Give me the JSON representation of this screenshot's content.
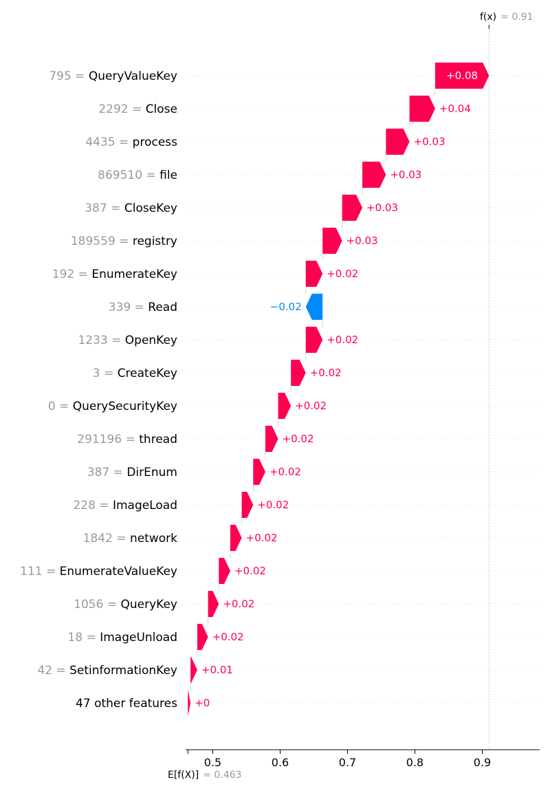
{
  "chart_data": {
    "type": "waterfall",
    "base_value": {
      "label": "E[f(X)]",
      "value": 0.463,
      "text": "= 0.463"
    },
    "output_value": {
      "label": "f(x)",
      "value": 0.91,
      "text": "= 0.91"
    },
    "xticks": [
      {
        "value": 0.5,
        "label": "0.5"
      },
      {
        "value": 0.6,
        "label": "0.6"
      },
      {
        "value": 0.7,
        "label": "0.7"
      },
      {
        "value": 0.8,
        "label": "0.8"
      },
      {
        "value": 0.9,
        "label": "0.9"
      }
    ],
    "xlim": [
      0.463,
      0.98
    ],
    "positive_color": "#ff0051",
    "negative_color": "#008bfb",
    "features": [
      {
        "value": "795",
        "name": "QueryValueKey",
        "start": 0.83,
        "end": 0.91,
        "label": "+0.08"
      },
      {
        "value": "2292",
        "name": "Close",
        "start": 0.792,
        "end": 0.83,
        "label": "+0.04"
      },
      {
        "value": "4435",
        "name": "process",
        "start": 0.757,
        "end": 0.792,
        "label": "+0.03"
      },
      {
        "value": "869510",
        "name": "file",
        "start": 0.722,
        "end": 0.757,
        "label": "+0.03"
      },
      {
        "value": "387",
        "name": "CloseKey",
        "start": 0.692,
        "end": 0.722,
        "label": "+0.03"
      },
      {
        "value": "189559",
        "name": "registry",
        "start": 0.663,
        "end": 0.692,
        "label": "+0.03"
      },
      {
        "value": "192",
        "name": "EnumerateKey",
        "start": 0.638,
        "end": 0.663,
        "label": "+0.02"
      },
      {
        "value": "339",
        "name": "Read",
        "start": 0.663,
        "end": 0.638,
        "label": "−0.02"
      },
      {
        "value": "1233",
        "name": "OpenKey",
        "start": 0.638,
        "end": 0.663,
        "label": "+0.02"
      },
      {
        "value": "3",
        "name": "CreateKey",
        "start": 0.616,
        "end": 0.638,
        "label": "+0.02"
      },
      {
        "value": "0",
        "name": "QuerySecurityKey",
        "start": 0.597,
        "end": 0.616,
        "label": "+0.02"
      },
      {
        "value": "291196",
        "name": "thread",
        "start": 0.578,
        "end": 0.597,
        "label": "+0.02"
      },
      {
        "value": "387",
        "name": "DirEnum",
        "start": 0.56,
        "end": 0.578,
        "label": "+0.02"
      },
      {
        "value": "228",
        "name": "ImageLoad",
        "start": 0.543,
        "end": 0.56,
        "label": "+0.02"
      },
      {
        "value": "1842",
        "name": "network",
        "start": 0.526,
        "end": 0.543,
        "label": "+0.02"
      },
      {
        "value": "111",
        "name": "EnumerateValueKey",
        "start": 0.509,
        "end": 0.526,
        "label": "+0.02"
      },
      {
        "value": "1056",
        "name": "QueryKey",
        "start": 0.493,
        "end": 0.509,
        "label": "+0.02"
      },
      {
        "value": "18",
        "name": "ImageUnload",
        "start": 0.477,
        "end": 0.493,
        "label": "+0.02"
      },
      {
        "value": "42",
        "name": "SetinformationKey",
        "start": 0.467,
        "end": 0.477,
        "label": "+0.01"
      },
      {
        "value": "",
        "name": "47 other features",
        "start": 0.463,
        "end": 0.467,
        "label": "+0"
      }
    ]
  }
}
